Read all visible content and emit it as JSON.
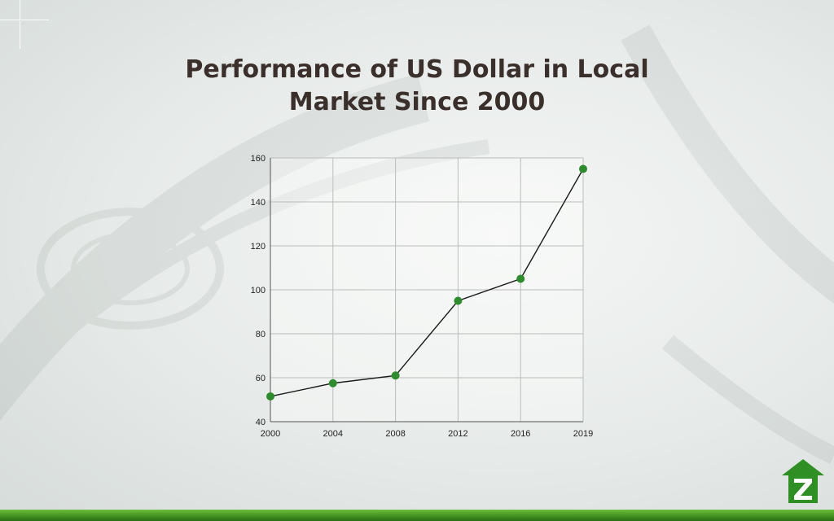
{
  "slide": {
    "title_line1": "Performance of US Dollar in Local",
    "title_line2": "Market Since 2000",
    "accent_color": "#2e8b2e",
    "bar_color": "#4a9e2a",
    "logo_icon": "zameen-house-z-logo"
  },
  "chart_data": {
    "type": "line",
    "x": [
      "2000",
      "2004",
      "2008",
      "2012",
      "2016",
      "2019"
    ],
    "series": [
      {
        "values": [
          51.5,
          57.5,
          61,
          95,
          105,
          155
        ]
      }
    ],
    "title": "",
    "xlabel": "",
    "ylabel": "",
    "ylim": [
      40,
      160
    ],
    "yticks": [
      40,
      60,
      80,
      100,
      120,
      140,
      160
    ],
    "grid": true,
    "legend": "none",
    "line_color": "#1a1a1a",
    "marker_color": "#2e8b2e"
  }
}
